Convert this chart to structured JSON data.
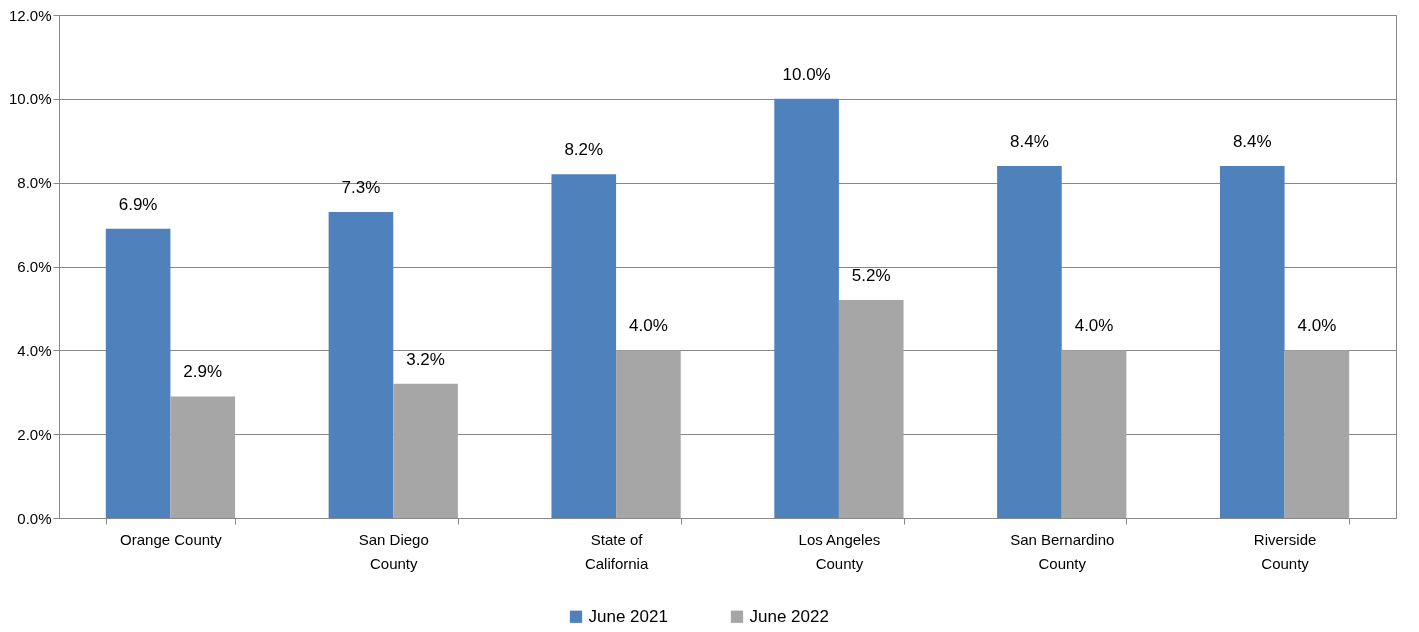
{
  "chart_data": {
    "type": "bar",
    "categories": [
      "Orange County",
      "San Diego\nCounty",
      "State of\nCalifornia",
      "Los Angeles\nCounty",
      "San Bernardino\nCounty",
      "Riverside\nCounty"
    ],
    "series": [
      {
        "name": "June 2021",
        "color": "#4f81bd",
        "values": [
          6.9,
          7.3,
          8.2,
          10.0,
          8.4,
          8.4
        ],
        "value_labels": [
          "6.9%",
          "7.3%",
          "8.2%",
          "10.0%",
          "8.4%",
          "8.4%"
        ]
      },
      {
        "name": "June 2022",
        "color": "#a6a6a6",
        "values": [
          2.9,
          3.2,
          4.0,
          5.2,
          4.0,
          4.0
        ],
        "value_labels": [
          "2.9%",
          "3.2%",
          "4.0%",
          "5.2%",
          "4.0%",
          "4.0%"
        ]
      }
    ],
    "ylim": [
      0,
      12
    ],
    "yticks": [
      {
        "value": 0,
        "label": "0.0%"
      },
      {
        "value": 2,
        "label": "2.0%"
      },
      {
        "value": 4,
        "label": "4.0%"
      },
      {
        "value": 6,
        "label": "6.0%"
      },
      {
        "value": 8,
        "label": "8.0%"
      },
      {
        "value": 10,
        "label": "10.0%"
      },
      {
        "value": 12,
        "label": "12.0%"
      }
    ],
    "grid": "y",
    "legend": "bottom"
  }
}
